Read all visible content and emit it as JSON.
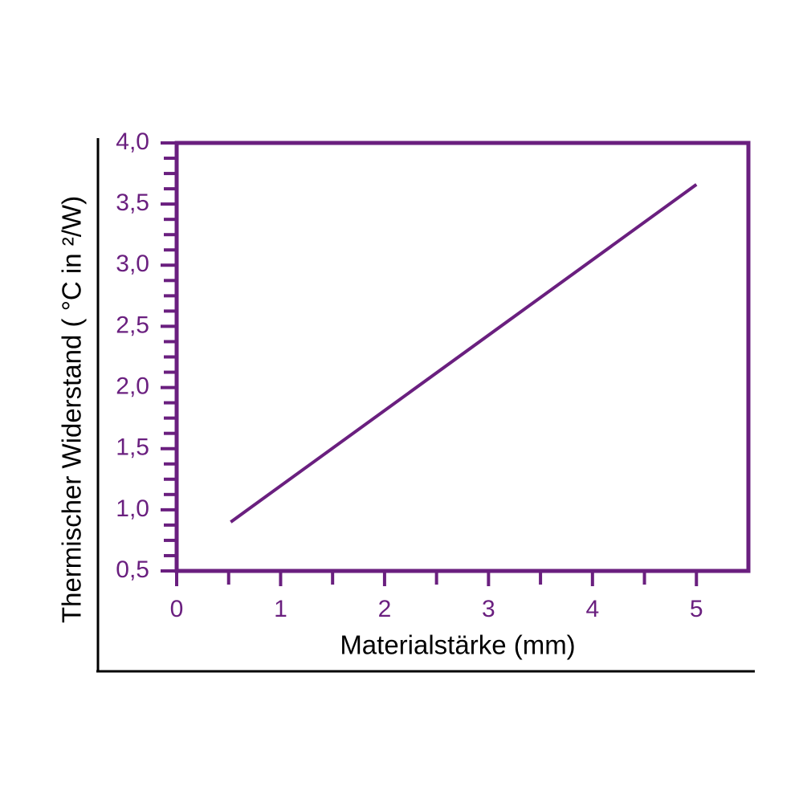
{
  "chart_data": {
    "type": "line",
    "x_label": "Materialstärke (mm)",
    "y_label": "Thermischer Widerstand ( °C in ²/W)",
    "x": [
      0.52,
      5.0
    ],
    "series": [
      {
        "color": "#6a1f7f",
        "values": [
          0.9,
          3.66
        ]
      }
    ],
    "xlim": [
      0,
      5.5
    ],
    "ylim": [
      0.5,
      4.0
    ],
    "xticks": [
      0,
      1,
      2,
      3,
      4,
      5
    ],
    "xminorticks": [
      0.5,
      1.5,
      2.5,
      3.5,
      4.5
    ],
    "yticks": [
      {
        "value": 0.5,
        "label": "0,5"
      },
      {
        "value": 1.0,
        "label": "1,0"
      },
      {
        "value": 1.5,
        "label": "1,5"
      },
      {
        "value": 2.0,
        "label": "2,0"
      },
      {
        "value": 2.5,
        "label": "2,5"
      },
      {
        "value": 3.0,
        "label": "3,0"
      },
      {
        "value": 3.5,
        "label": "3,5"
      },
      {
        "value": 4.0,
        "label": "4,0"
      }
    ],
    "yminorticks": [
      0.625,
      0.75,
      0.875,
      1.125,
      1.25,
      1.375,
      1.625,
      1.75,
      1.875,
      2.125,
      2.25,
      2.375,
      2.625,
      2.75,
      2.875,
      3.125,
      3.25,
      3.375,
      3.625,
      3.75,
      3.875
    ],
    "axis_color": "#6a1f7f"
  }
}
